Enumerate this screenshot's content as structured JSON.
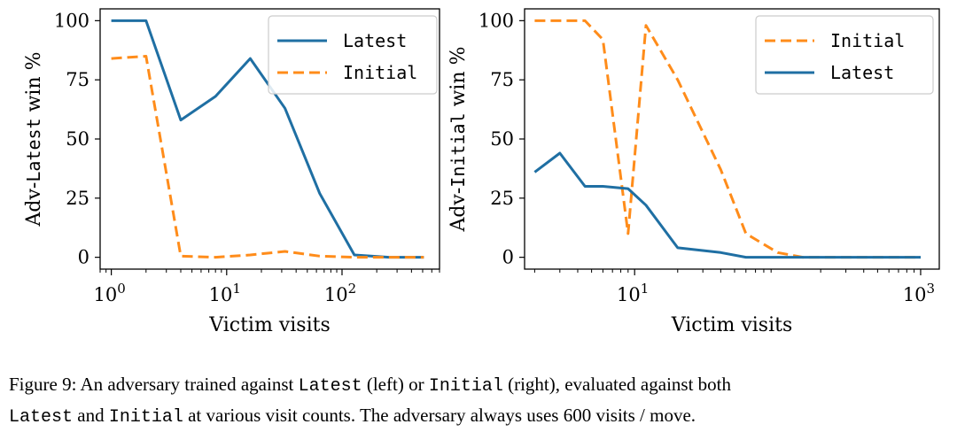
{
  "chart_data": [
    {
      "type": "line",
      "panel": "left",
      "ylabel_parts": [
        {
          "text": "Adv-",
          "font": "serif"
        },
        {
          "text": "Latest",
          "font": "mono"
        },
        {
          "text": " win %",
          "font": "serif"
        }
      ],
      "xlabel": "Victim visits",
      "xscale": "log",
      "xlim": [
        0.8,
        700
      ],
      "ylim": [
        -5,
        105
      ],
      "yticks": [
        0,
        25,
        50,
        75,
        100
      ],
      "xticks": [
        {
          "value": 1,
          "base": "10",
          "exp": "0"
        },
        {
          "value": 10,
          "base": "10",
          "exp": "1"
        },
        {
          "value": 100,
          "base": "10",
          "exp": "2"
        }
      ],
      "legend": "top-right",
      "series": [
        {
          "name": "Latest",
          "style": "solid",
          "color": "#1f6fa3",
          "x": [
            1,
            2,
            4,
            8,
            16,
            32,
            64,
            128,
            256,
            512
          ],
          "y": [
            100,
            100,
            58,
            68,
            84,
            63,
            27,
            1,
            0,
            0
          ]
        },
        {
          "name": "Initial",
          "style": "dashed",
          "color": "#ff8c1a",
          "x": [
            1,
            2,
            4,
            8,
            16,
            32,
            64,
            128,
            256,
            512
          ],
          "y": [
            84,
            85,
            0.5,
            0,
            1,
            2.5,
            0.5,
            0,
            0,
            0
          ]
        }
      ]
    },
    {
      "type": "line",
      "panel": "right",
      "ylabel_parts": [
        {
          "text": "Adv-",
          "font": "serif"
        },
        {
          "text": "Initial",
          "font": "mono"
        },
        {
          "text": " win %",
          "font": "serif"
        }
      ],
      "xlabel": "Victim visits",
      "xscale": "log",
      "xlim": [
        1.7,
        1350
      ],
      "ylim": [
        -5,
        105
      ],
      "yticks": [
        0,
        25,
        50,
        75,
        100
      ],
      "xticks": [
        {
          "value": 10,
          "base": "10",
          "exp": "1"
        },
        {
          "value": 1000,
          "base": "10",
          "exp": "3"
        }
      ],
      "legend": "top-right",
      "series": [
        {
          "name": "Initial",
          "style": "dashed",
          "color": "#ff8c1a",
          "x": [
            2,
            3,
            4.5,
            6,
            9,
            12,
            20,
            40,
            60,
            100,
            150,
            200,
            300,
            600,
            1000
          ],
          "y": [
            100,
            100,
            100,
            92,
            10,
            98,
            75,
            37,
            10,
            2,
            0,
            0,
            0,
            0,
            0
          ]
        },
        {
          "name": "Latest",
          "style": "solid",
          "color": "#1f6fa3",
          "x": [
            2,
            3,
            4.5,
            6,
            9,
            12,
            20,
            40,
            60,
            100,
            150,
            200,
            300,
            600,
            1000
          ],
          "y": [
            36,
            44,
            30,
            30,
            29,
            22,
            4,
            2,
            0,
            0,
            0,
            0,
            0,
            0,
            0
          ]
        }
      ]
    }
  ],
  "caption": {
    "line1": [
      {
        "text": "Figure 9: An adversary trained against ",
        "mono": false
      },
      {
        "text": "Latest",
        "mono": true
      },
      {
        "text": " (left) or ",
        "mono": false
      },
      {
        "text": "Initial",
        "mono": true
      },
      {
        "text": " (right), evaluated against both",
        "mono": false
      }
    ],
    "line2": [
      {
        "text": "Latest",
        "mono": true
      },
      {
        "text": " and ",
        "mono": false
      },
      {
        "text": "Initial",
        "mono": true
      },
      {
        "text": " at various visit counts. The adversary always uses 600 visits / move.",
        "mono": false
      }
    ]
  }
}
